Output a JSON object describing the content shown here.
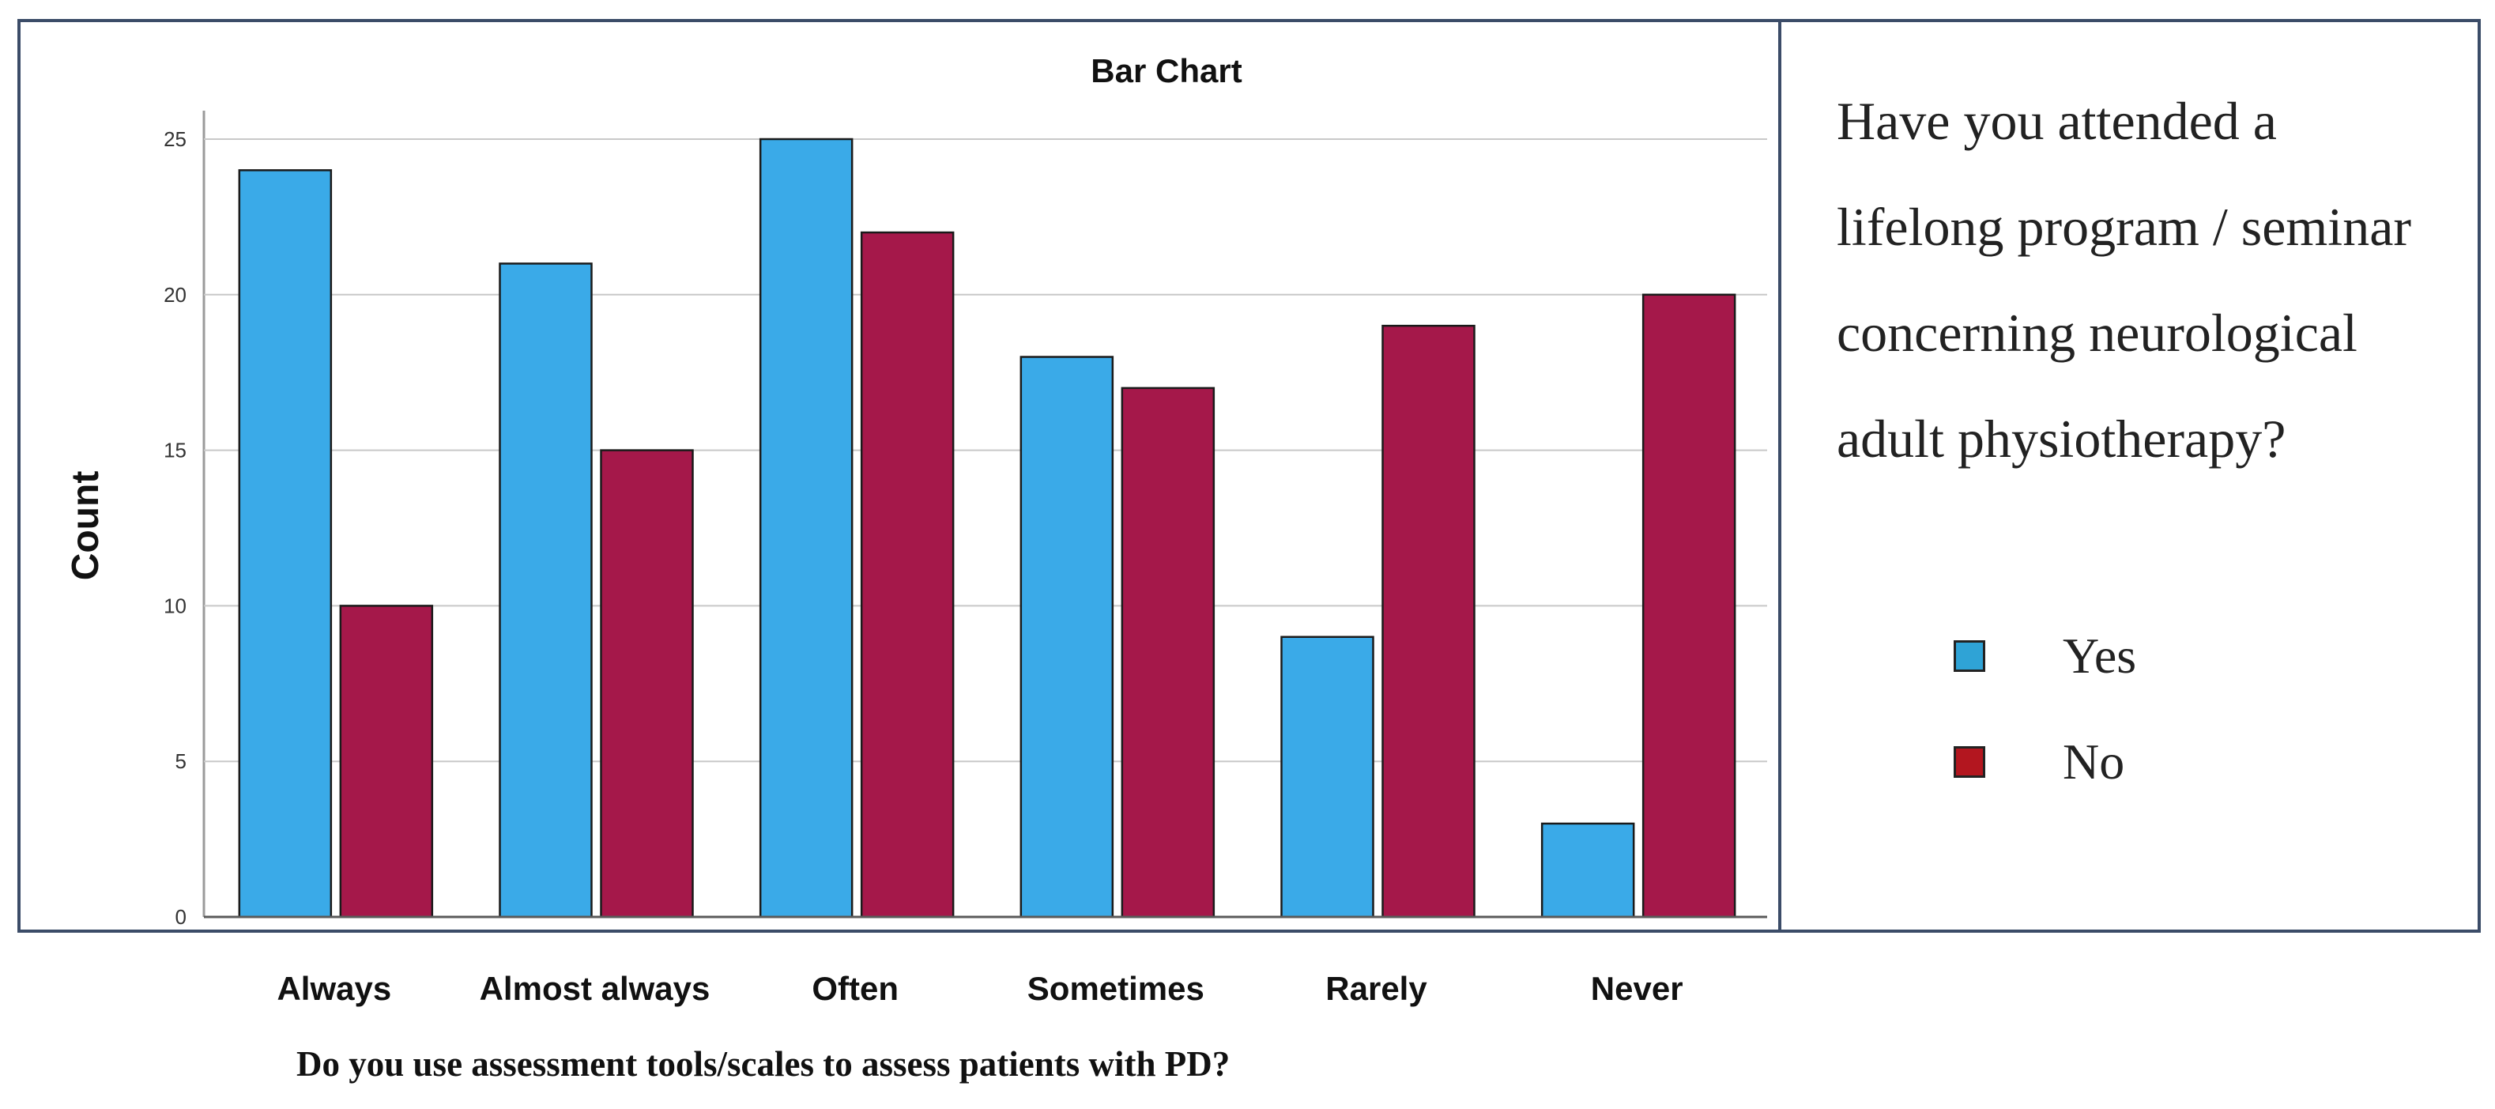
{
  "chart_data": {
    "type": "bar",
    "title": "Bar Chart",
    "xlabel": "Do you use assessment tools/scales to assess patients with PD?",
    "ylabel": "Count",
    "categories": [
      "Always",
      "Almost always",
      "Often",
      "Sometimes",
      "Rarely",
      "Never"
    ],
    "series": [
      {
        "name": "Yes",
        "values": [
          24,
          21,
          25,
          18,
          9,
          3
        ],
        "color": "#3aaae8"
      },
      {
        "name": "No",
        "values": [
          10,
          15,
          22,
          17,
          19,
          20
        ],
        "color": "#a5184a"
      }
    ],
    "ylim": [
      0,
      25
    ],
    "yticks": [
      "0",
      "5",
      "10",
      "15",
      "20",
      "25"
    ],
    "grid": true,
    "legend_title": "Have you attended a lifelong program / seminar concerning neurological adult physiotherapy?",
    "legend_position": "right",
    "legend_swatch_colors": {
      "Yes": "#2fa3d6",
      "No": "#b3161f"
    }
  }
}
